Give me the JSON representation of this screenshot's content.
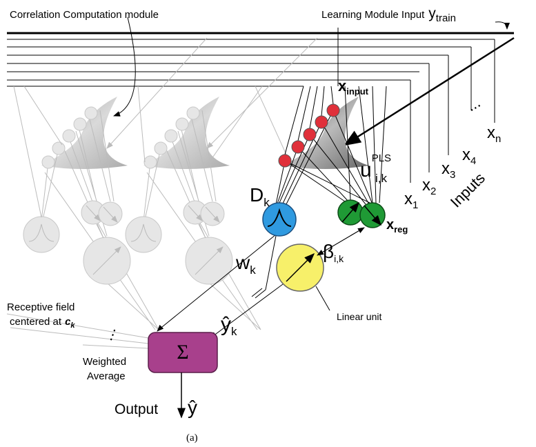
{
  "header": {
    "correlation_module": "Correlation Computation module",
    "learning_input": "Learning Module Input",
    "y_train": {
      "base": "y",
      "sub": "train"
    }
  },
  "inputs": {
    "x_input": {
      "base": "x",
      "sub": "input"
    },
    "items": [
      {
        "base": "x",
        "sub": "1"
      },
      {
        "base": "x",
        "sub": "2"
      },
      {
        "base": "x",
        "sub": "3"
      },
      {
        "base": "x",
        "sub": "4"
      },
      {
        "base": "x",
        "sub": "n"
      }
    ],
    "ellipsis": "...",
    "label": "Inputs"
  },
  "units": {
    "d_k": {
      "base": "D",
      "sub": "k"
    },
    "u": {
      "base": "u",
      "sup": "PLS",
      "sub": "i,k"
    },
    "x_reg": {
      "base": "x",
      "sub": "reg"
    },
    "beta": {
      "base": "β",
      "sub": "i,k"
    },
    "w_k": {
      "base": "w",
      "sub": "k"
    },
    "y_hat_k": {
      "base": "ŷ",
      "sub": "k"
    },
    "linear_unit": "Linear unit",
    "sigma": "Σ"
  },
  "receptive_field": {
    "line1": "Receptive field",
    "line2": "centered at",
    "c_k": {
      "base": "c",
      "sub": "k"
    },
    "ellipsis": "⋮"
  },
  "weighted_average": {
    "line1": "Weighted",
    "line2": "Average"
  },
  "output": {
    "label": "Output",
    "y_hat": "ŷ"
  },
  "caption": "(a)"
}
